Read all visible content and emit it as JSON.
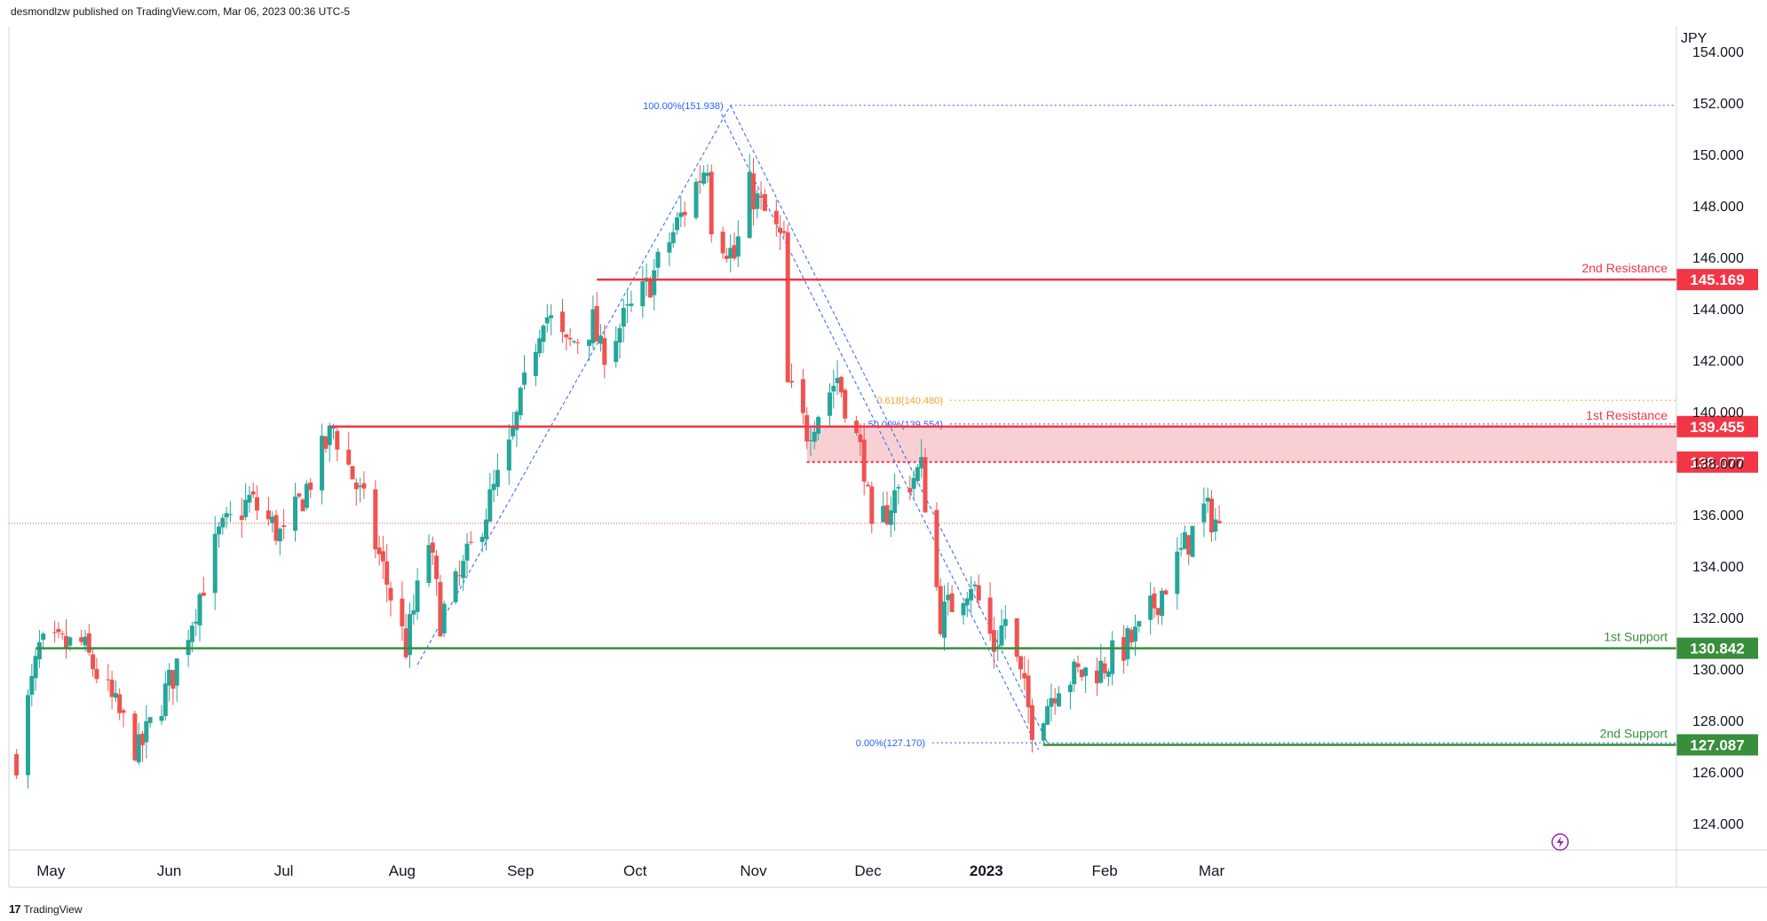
{
  "header": {
    "published": "desmondlzw published on TradingView.com, Mar 06, 2023 00:36 UTC-5"
  },
  "footer": {
    "brand": "TradingView",
    "logo": "tradingview-logo-icon"
  },
  "colors": {
    "up": "#26a69a",
    "down": "#ef5350",
    "resistance": "#f23645",
    "support": "#388e3c",
    "fib": "#2962ff",
    "fib618": "#f5a623",
    "zone": "#f8d0d4"
  },
  "chart_data": {
    "type": "candlestick",
    "currency_label": "JPY",
    "ylim": [
      123,
      155
    ],
    "y_ticks": [
      "124.000",
      "126.000",
      "128.000",
      "130.000",
      "132.000",
      "134.000",
      "136.000",
      "138.000",
      "140.000",
      "142.000",
      "144.000",
      "146.000",
      "148.000",
      "150.000",
      "152.000",
      "154.000"
    ],
    "x_labels": [
      "May",
      "Jun",
      "Jul",
      "Aug",
      "Sep",
      "Oct",
      "Nov",
      "Dec",
      "2023",
      "Feb",
      "Mar"
    ],
    "levels": [
      {
        "name": "2nd Resistance",
        "value": "145.169",
        "kind": "resistance"
      },
      {
        "name": "1st Resistance",
        "value": "139.455",
        "kind": "resistance"
      },
      {
        "name": "",
        "value": "138.077",
        "kind": "resistance"
      },
      {
        "name": "1st Support",
        "value": "130.842",
        "kind": "support"
      },
      {
        "name": "2nd Support",
        "value": "127.087",
        "kind": "support"
      }
    ],
    "fib_labels": [
      {
        "text": "100.00%(151.938)",
        "value": 151.938
      },
      {
        "text": "0.618(140.480)",
        "value": 140.48
      },
      {
        "text": "50.00%(139.554)",
        "value": 139.554
      },
      {
        "text": "0.00%(127.170)",
        "value": 127.17
      }
    ],
    "last_price": 135.7,
    "anchors": [
      [
        "2022-04-22",
        126.6
      ],
      [
        "2022-04-28",
        130.8
      ],
      [
        "2022-05-09",
        131.0
      ],
      [
        "2022-05-24",
        126.8
      ],
      [
        "2022-06-02",
        129.8
      ],
      [
        "2022-06-14",
        135.2
      ],
      [
        "2022-06-22",
        136.6
      ],
      [
        "2022-07-01",
        135.1
      ],
      [
        "2022-07-14",
        139.4
      ],
      [
        "2022-07-22",
        136.4
      ],
      [
        "2022-08-02",
        130.9
      ],
      [
        "2022-08-08",
        135.0
      ],
      [
        "2022-08-11",
        132.0
      ],
      [
        "2022-08-16",
        133.5
      ],
      [
        "2022-08-29",
        138.5
      ],
      [
        "2022-09-07",
        144.0
      ],
      [
        "2022-09-13",
        142.5
      ],
      [
        "2022-09-20",
        143.5
      ],
      [
        "2022-09-22",
        142.3
      ],
      [
        "2022-10-04",
        144.8
      ],
      [
        "2022-10-20",
        149.8
      ],
      [
        "2022-10-21",
        147.5
      ],
      [
        "2022-10-27",
        146.0
      ],
      [
        "2022-10-31",
        148.7
      ],
      [
        "2022-11-09",
        146.5
      ],
      [
        "2022-11-10",
        141.0
      ],
      [
        "2022-11-15",
        139.3
      ],
      [
        "2022-11-23",
        141.4
      ],
      [
        "2022-11-30",
        138.0
      ],
      [
        "2022-12-02",
        135.0
      ],
      [
        "2022-12-08",
        136.8
      ],
      [
        "2022-12-15",
        137.8
      ],
      [
        "2022-12-20",
        132.0
      ],
      [
        "2022-12-28",
        133.5
      ],
      [
        "2023-01-03",
        130.9
      ],
      [
        "2023-01-06",
        132.0
      ],
      [
        "2023-01-13",
        127.9
      ],
      [
        "2023-01-16",
        128.5
      ],
      [
        "2023-01-20",
        129.6
      ],
      [
        "2023-01-31",
        130.1
      ],
      [
        "2023-02-10",
        131.4
      ],
      [
        "2023-02-21",
        134.5
      ],
      [
        "2023-02-27",
        136.2
      ],
      [
        "2023-03-03",
        135.7
      ]
    ]
  }
}
